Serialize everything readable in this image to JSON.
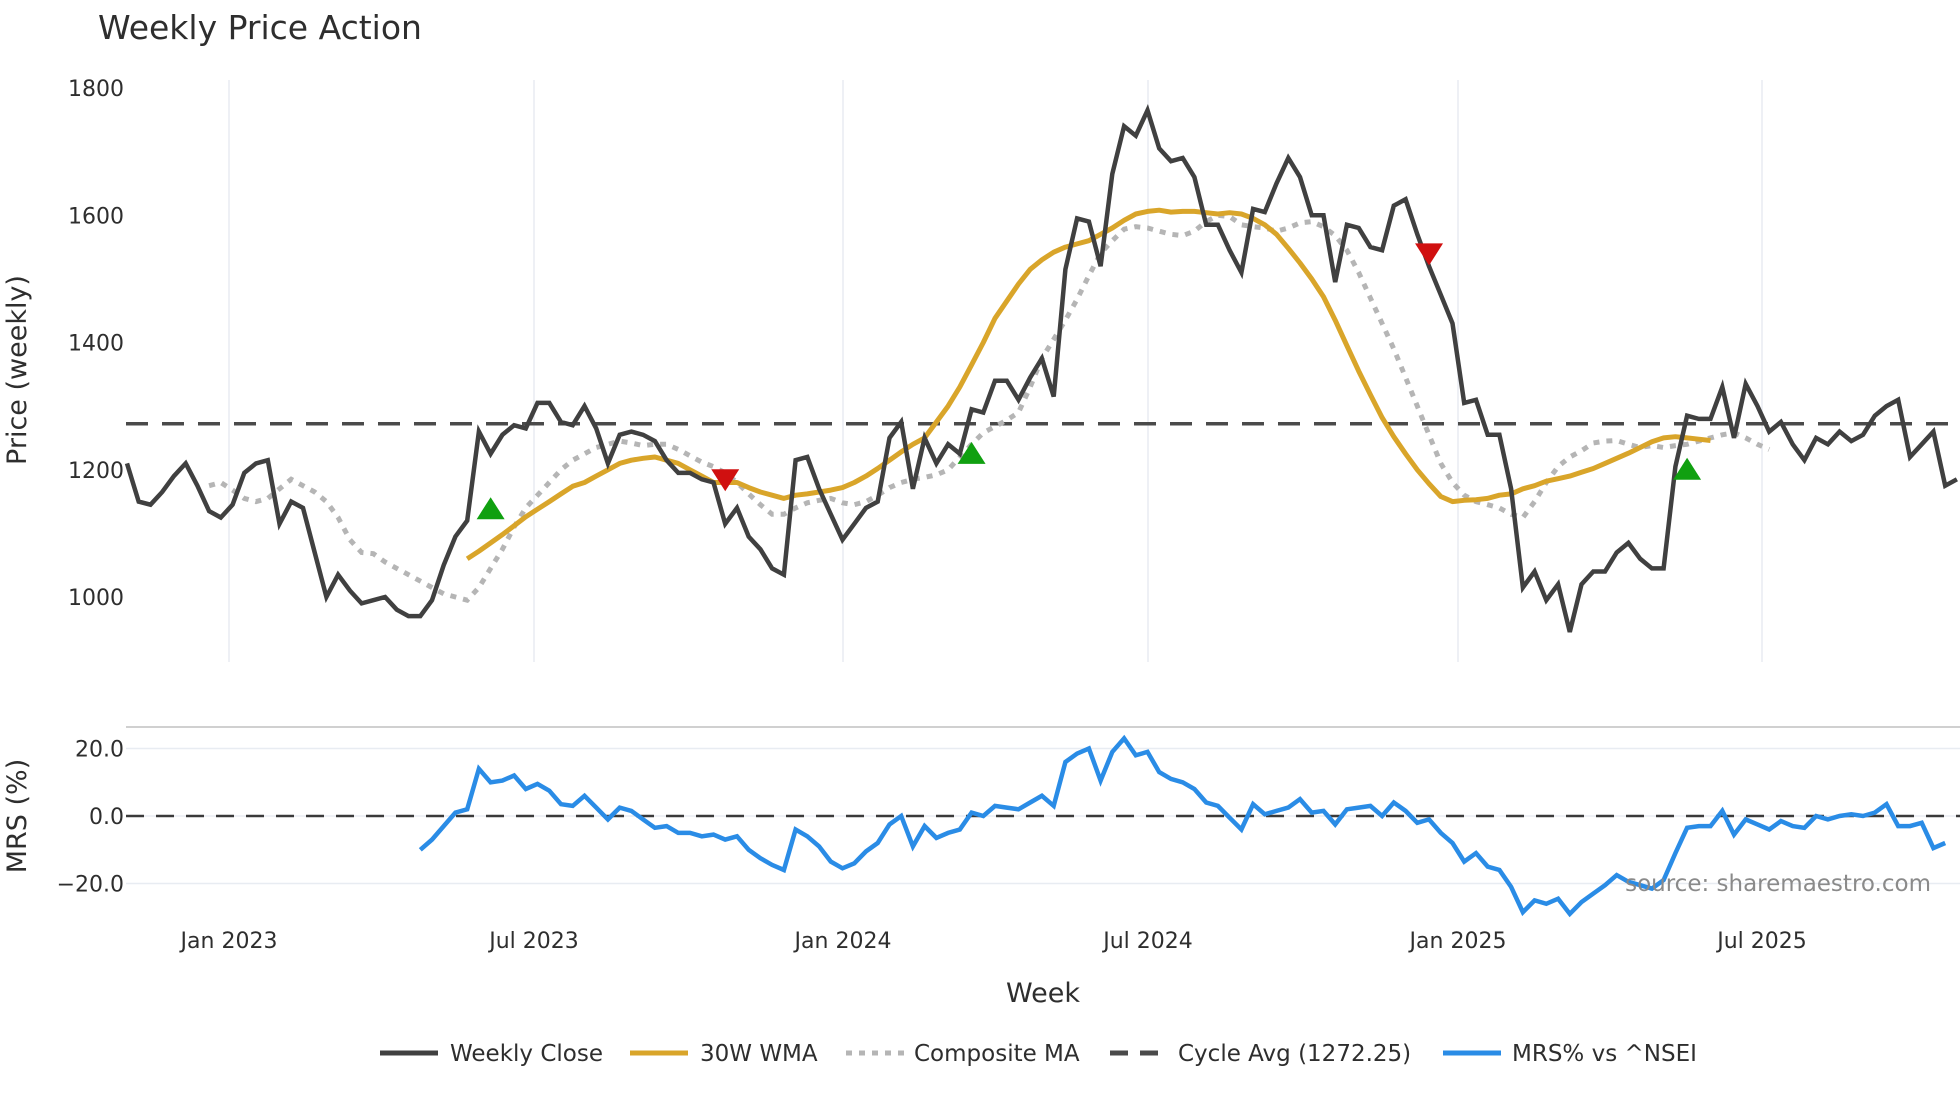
{
  "title": "Weekly Price Action",
  "source_note": "source: sharemaestro.com",
  "colors": {
    "weekly_close": "#404040",
    "wma": "#d9a52a",
    "composite": "#b5b5b5",
    "cycle_avg": "#4a4a4a",
    "mrs": "#2a8ce6",
    "buy_marker": "#10a010",
    "sell_marker": "#d01010",
    "grid": "#e8ecf2"
  },
  "legend": [
    {
      "label": "Weekly Close",
      "style": "solid-dark"
    },
    {
      "label": "30W WMA",
      "style": "solid-gold"
    },
    {
      "label": "Composite MA",
      "style": "dotted-grey"
    },
    {
      "label": "Cycle Avg (1272.25)",
      "style": "dashed-dark"
    },
    {
      "label": "MRS% vs ^NSEI",
      "style": "solid-blue"
    }
  ],
  "chart_data": [
    {
      "type": "line",
      "title": "Weekly Price Action",
      "xlabel": "Week",
      "ylabel": "Price (weekly)",
      "ylim": [
        900,
        1800
      ],
      "yticks": [
        1000,
        1200,
        1400,
        1600,
        1800
      ],
      "xticks": [
        "Jan 2023",
        "Jul 2023",
        "Jan 2024",
        "Jul 2024",
        "Jan 2025",
        "Jul 2025"
      ],
      "grid": true,
      "x_start_week_offset": -9,
      "series": [
        {
          "name": "Weekly Close",
          "start": 0,
          "values": [
            1210,
            1150,
            1145,
            1165,
            1190,
            1210,
            1175,
            1135,
            1125,
            1145,
            1195,
            1210,
            1215,
            1115,
            1150,
            1140,
            1070,
            1000,
            1035,
            1010,
            990,
            995,
            1000,
            980,
            970,
            970,
            995,
            1050,
            1095,
            1120,
            1260,
            1225,
            1255,
            1270,
            1265,
            1305,
            1305,
            1275,
            1270,
            1300,
            1265,
            1210,
            1255,
            1260,
            1255,
            1245,
            1215,
            1195,
            1195,
            1185,
            1180,
            1115,
            1140,
            1095,
            1075,
            1045,
            1035,
            1215,
            1220,
            1170,
            1130,
            1090,
            1115,
            1140,
            1150,
            1250,
            1275,
            1170,
            1250,
            1210,
            1240,
            1225,
            1295,
            1290,
            1340,
            1340,
            1310,
            1345,
            1375,
            1315,
            1515,
            1595,
            1590,
            1520,
            1665,
            1740,
            1725,
            1765,
            1705,
            1685,
            1690,
            1660,
            1585,
            1585,
            1545,
            1510,
            1610,
            1605,
            1650,
            1690,
            1660,
            1600,
            1600,
            1495,
            1585,
            1580,
            1550,
            1545,
            1615,
            1625,
            1570,
            1520,
            1475,
            1430,
            1305,
            1310,
            1255,
            1255,
            1170,
            1015,
            1040,
            995,
            1020,
            945,
            1020,
            1040,
            1040,
            1070,
            1085,
            1060,
            1045,
            1045,
            1205,
            1285,
            1280,
            1280,
            1330,
            1250,
            1335,
            1300,
            1260,
            1275,
            1240,
            1215,
            1250,
            1240,
            1260,
            1245,
            1255,
            1285,
            1300,
            1310,
            1220,
            1240,
            1260,
            1175,
            1185
          ]
        },
        {
          "name": "30W WMA",
          "start": 29,
          "values": [
            1060,
            1072,
            1085,
            1098,
            1112,
            1126,
            1138,
            1150,
            1162,
            1174,
            1180,
            1190,
            1200,
            1210,
            1215,
            1218,
            1220,
            1215,
            1210,
            1200,
            1190,
            1180,
            1180,
            1180,
            1172,
            1165,
            1160,
            1155,
            1160,
            1162,
            1165,
            1168,
            1172,
            1180,
            1190,
            1202,
            1215,
            1228,
            1240,
            1250,
            1275,
            1300,
            1330,
            1365,
            1400,
            1438,
            1465,
            1492,
            1515,
            1530,
            1542,
            1550,
            1555,
            1560,
            1570,
            1580,
            1592,
            1602,
            1606,
            1608,
            1605,
            1606,
            1606,
            1604,
            1602,
            1604,
            1602,
            1595,
            1585,
            1570,
            1548,
            1525,
            1500,
            1472,
            1435,
            1395,
            1355,
            1318,
            1282,
            1252,
            1225,
            1200,
            1178,
            1158,
            1150,
            1152,
            1153,
            1155,
            1160,
            1162,
            1170,
            1175,
            1182,
            1186,
            1190,
            1196,
            1202,
            1210,
            1218,
            1226,
            1235,
            1244,
            1250,
            1252,
            1250,
            1248,
            1246
          ]
        },
        {
          "name": "Composite MA",
          "start": 7,
          "values": [
            1175,
            1180,
            1168,
            1155,
            1150,
            1155,
            1170,
            1185,
            1175,
            1165,
            1150,
            1125,
            1090,
            1070,
            1068,
            1055,
            1045,
            1035,
            1025,
            1015,
            1005,
            1000,
            995,
            1015,
            1045,
            1075,
            1110,
            1140,
            1160,
            1180,
            1200,
            1215,
            1225,
            1235,
            1240,
            1245,
            1242,
            1238,
            1240,
            1240,
            1232,
            1222,
            1212,
            1205,
            1195,
            1180,
            1162,
            1145,
            1130,
            1130,
            1140,
            1148,
            1152,
            1155,
            1148,
            1145,
            1150,
            1160,
            1172,
            1180,
            1185,
            1188,
            1192,
            1200,
            1220,
            1240,
            1258,
            1268,
            1278,
            1290,
            1330,
            1375,
            1405,
            1435,
            1468,
            1505,
            1540,
            1560,
            1578,
            1582,
            1580,
            1575,
            1570,
            1568,
            1575,
            1590,
            1600,
            1598,
            1585,
            1582,
            1580,
            1575,
            1580,
            1588,
            1590,
            1582,
            1568,
            1545,
            1510,
            1470,
            1430,
            1390,
            1345,
            1300,
            1255,
            1210,
            1180,
            1160,
            1150,
            1145,
            1140,
            1130,
            1125,
            1150,
            1180,
            1205,
            1220,
            1230,
            1242,
            1245,
            1246,
            1240,
            1235,
            1238,
            1235,
            1238,
            1240,
            1245,
            1250,
            1255,
            1258,
            1250,
            1240,
            1232
          ]
        },
        {
          "name": "Cycle Avg",
          "constant": 1272.25
        }
      ],
      "markers": [
        {
          "type": "buy",
          "week_index": 31,
          "value": 1138
        },
        {
          "type": "sell",
          "week_index": 51,
          "value": 1185
        },
        {
          "type": "buy",
          "week_index": 72,
          "value": 1225
        },
        {
          "type": "sell",
          "week_index": 111,
          "value": 1540
        },
        {
          "type": "buy",
          "week_index": 133,
          "value": 1200
        }
      ]
    },
    {
      "type": "line",
      "title": "",
      "xlabel": "Week",
      "ylabel": "MRS (%)",
      "ylim": [
        -30,
        25
      ],
      "yticks": [
        -20.0,
        0.0,
        20.0
      ],
      "grid": true,
      "series": [
        {
          "name": "MRS% vs ^NSEI",
          "start": 25,
          "values": [
            -10,
            -7,
            -3,
            1,
            2,
            14,
            10,
            10.5,
            12,
            8,
            9.5,
            7.5,
            3.5,
            3,
            6,
            2.5,
            -1,
            2.5,
            1.5,
            -1,
            -3.5,
            -3,
            -5,
            -5,
            -6,
            -5.5,
            -7,
            -6,
            -10,
            -12.5,
            -14.5,
            -16,
            -4,
            -6,
            -9,
            -13.5,
            -15.5,
            -14,
            -10.5,
            -8,
            -2.5,
            0,
            -9,
            -3,
            -6.5,
            -5,
            -4,
            1,
            0,
            3,
            2.5,
            2,
            4,
            6,
            3,
            16,
            18.5,
            20,
            10.5,
            19,
            23,
            18,
            19,
            13,
            11,
            10,
            8,
            4,
            3,
            -0.5,
            -4,
            3.5,
            0.5,
            1.5,
            2.5,
            5,
            1,
            1.5,
            -2.5,
            2,
            2.5,
            3,
            0,
            4,
            1.5,
            -2,
            -1,
            -5,
            -8,
            -13.5,
            -11,
            -15,
            -16,
            -21,
            -28.5,
            -25,
            -26,
            -24.5,
            -29,
            -25.5,
            -23,
            -20.5,
            -17.5,
            -19.5,
            -20.5,
            -21.5,
            -19,
            -11,
            -3.5,
            -3,
            -3,
            1.5,
            -5.5,
            -1,
            -2.5,
            -4,
            -1.5,
            -3,
            -3.5,
            0,
            -1,
            0,
            0.5,
            0,
            1,
            3.5,
            -3,
            -3,
            -2,
            -9.5,
            -8
          ]
        },
        {
          "name": "Zero line",
          "constant": 0
        }
      ]
    }
  ]
}
